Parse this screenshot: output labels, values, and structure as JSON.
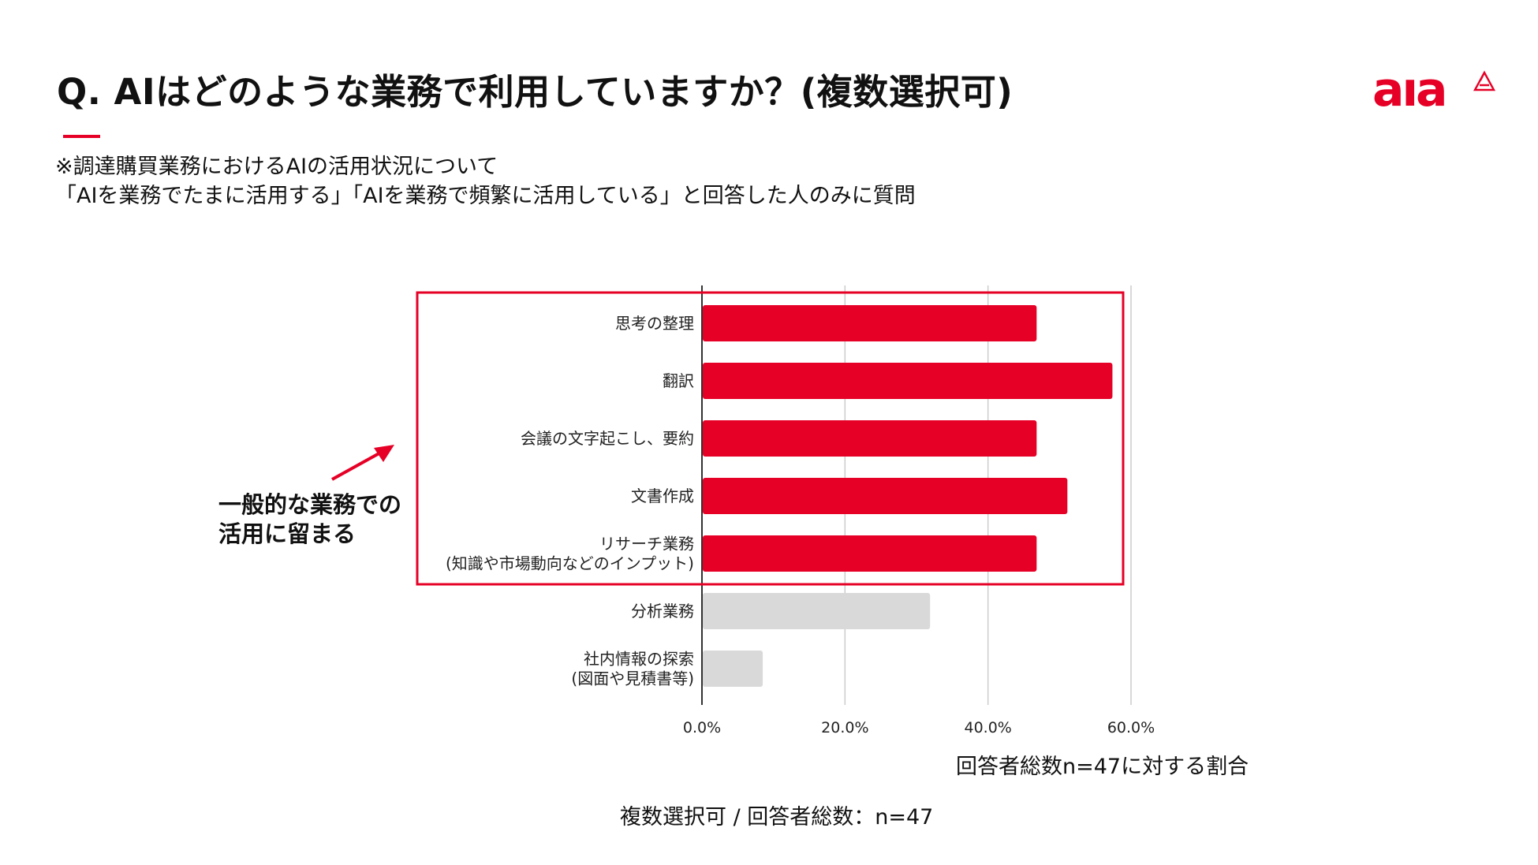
{
  "header": {
    "title": "Q. AIはどのような業務で利用していますか？(複数選択可)",
    "logo_text": "aia"
  },
  "note": {
    "line1": "※調達購買業務におけるAIの活用状況について",
    "line2": "「AIを業務でたまに活用する」「AIを業務で頻繁に活用している」と回答した人のみに質問"
  },
  "colors": {
    "accent": "#e60026",
    "highlight_bar": "#e60026",
    "muted_bar": "#d9d9d9",
    "grid": "#cccccc"
  },
  "chart_data": {
    "type": "bar",
    "orientation": "horizontal",
    "categories": [
      [
        "思考の整理"
      ],
      [
        "翻訳"
      ],
      [
        "会議の文字起こし、要約"
      ],
      [
        "文書作成"
      ],
      [
        "リサーチ業務",
        "(知識や市場動向などのインプット)"
      ],
      [
        "分析業務"
      ],
      [
        "社内情報の探索",
        "(図面や見積書等)"
      ]
    ],
    "values": [
      46.8,
      57.4,
      46.8,
      51.1,
      46.8,
      31.9,
      8.5
    ],
    "highlighted": [
      true,
      true,
      true,
      true,
      true,
      false,
      false
    ],
    "xlim": [
      0,
      60
    ],
    "xticks": [
      0,
      20,
      40,
      60
    ],
    "xtick_labels": [
      "0.0%",
      "20.0%",
      "40.0%",
      "60.0%"
    ],
    "xlabel": "回答者総数n=47に対する割合",
    "grid": "vertical",
    "highlight_box": "categories 1-5"
  },
  "callout": {
    "line1": "一般的な業務での",
    "line2": "活用に留まる"
  },
  "footer": {
    "text": "複数選択可 / 回答者総数：n=47"
  }
}
